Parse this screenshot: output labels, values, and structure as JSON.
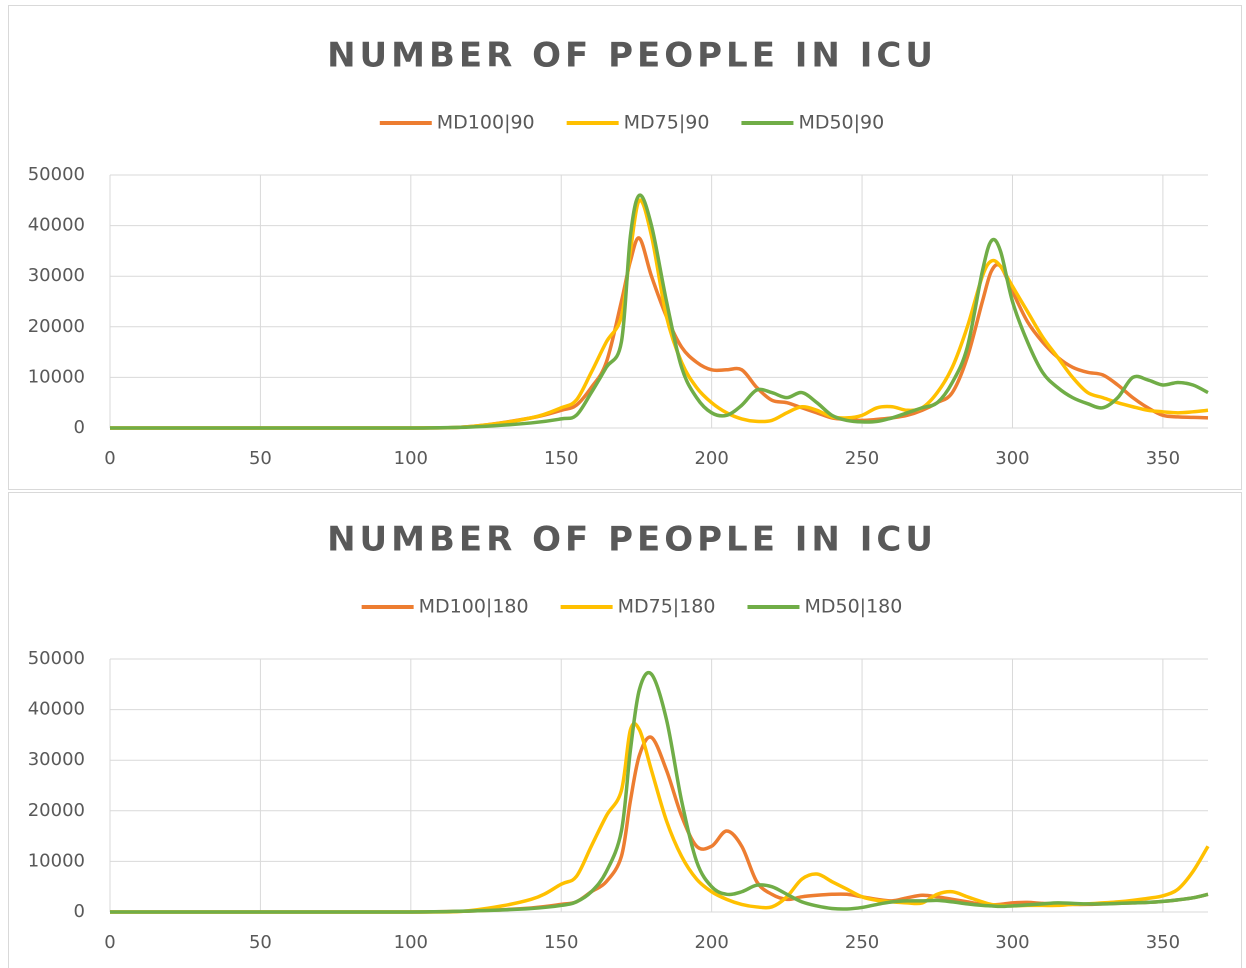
{
  "chart_data": [
    {
      "type": "line",
      "title": "NUMBER OF PEOPLE IN ICU",
      "x": [
        0,
        50,
        100,
        120,
        140,
        150,
        155,
        160,
        165,
        170,
        173,
        176,
        180,
        185,
        190,
        195,
        200,
        205,
        210,
        215,
        220,
        225,
        230,
        235,
        240,
        245,
        250,
        255,
        260,
        265,
        270,
        275,
        280,
        285,
        290,
        293,
        296,
        300,
        305,
        310,
        315,
        320,
        325,
        330,
        335,
        340,
        345,
        350,
        355,
        360,
        365
      ],
      "series": [
        {
          "name": "MD100|90",
          "color": "#ed7d31",
          "values": [
            0,
            0,
            0,
            300,
            2000,
            3500,
            4500,
            8000,
            13000,
            25000,
            33000,
            37500,
            30000,
            22000,
            16000,
            13000,
            11500,
            11500,
            11500,
            8000,
            5500,
            5000,
            4000,
            3000,
            2000,
            1700,
            1500,
            1700,
            2000,
            2500,
            3500,
            5000,
            7000,
            14000,
            25000,
            31000,
            32000,
            27000,
            21000,
            17000,
            14000,
            12000,
            11000,
            10500,
            8500,
            6000,
            4000,
            2500,
            2200,
            2100,
            2000
          ]
        },
        {
          "name": "MD75|90",
          "color": "#ffc000",
          "values": [
            0,
            0,
            0,
            300,
            2000,
            4000,
            5500,
            11000,
            17000,
            22000,
            35000,
            45000,
            38000,
            22000,
            13000,
            8000,
            5000,
            3000,
            1800,
            1300,
            1500,
            3000,
            4200,
            3500,
            2200,
            2000,
            2500,
            4000,
            4200,
            3500,
            4000,
            7000,
            12000,
            20000,
            30000,
            33000,
            32000,
            28000,
            23000,
            18000,
            14000,
            10000,
            7000,
            6000,
            5000,
            4200,
            3500,
            3200,
            3000,
            3200,
            3500
          ]
        },
        {
          "name": "MD50|90",
          "color": "#70ad47",
          "values": [
            0,
            0,
            0,
            200,
            1000,
            1800,
            2500,
            7000,
            12000,
            17000,
            38000,
            46000,
            40000,
            25000,
            12000,
            6000,
            3000,
            2500,
            4500,
            7500,
            7000,
            6000,
            7000,
            5000,
            2500,
            1500,
            1200,
            1300,
            2000,
            3000,
            4000,
            5000,
            9000,
            16000,
            31000,
            37000,
            35000,
            25000,
            17000,
            11000,
            8000,
            6000,
            4800,
            4000,
            6000,
            10000,
            9500,
            8500,
            9000,
            8500,
            7000
          ]
        }
      ],
      "xlim": [
        0,
        365
      ],
      "xticks": [
        0,
        50,
        100,
        150,
        200,
        250,
        300,
        350
      ],
      "ylim": [
        0,
        50000
      ],
      "yticks": [
        0,
        10000,
        20000,
        30000,
        40000,
        50000
      ],
      "grid": true,
      "legend": "top"
    },
    {
      "type": "line",
      "title": "NUMBER OF PEOPLE IN ICU",
      "x": [
        0,
        50,
        100,
        120,
        140,
        150,
        155,
        160,
        165,
        170,
        173,
        176,
        180,
        185,
        190,
        195,
        200,
        205,
        210,
        215,
        220,
        225,
        230,
        235,
        240,
        245,
        250,
        255,
        260,
        265,
        270,
        275,
        280,
        285,
        290,
        293,
        296,
        300,
        305,
        310,
        315,
        320,
        325,
        330,
        335,
        340,
        345,
        350,
        355,
        360,
        365
      ],
      "series": [
        {
          "name": "MD100|180",
          "color": "#ed7d31",
          "values": [
            0,
            0,
            0,
            200,
            800,
            1500,
            2000,
            4000,
            6000,
            11000,
            22000,
            31000,
            34500,
            28000,
            19000,
            13000,
            13000,
            16000,
            13000,
            6000,
            3500,
            2500,
            3000,
            3300,
            3500,
            3500,
            3000,
            2500,
            2200,
            2800,
            3300,
            3000,
            2500,
            2000,
            1500,
            1400,
            1500,
            1800,
            1900,
            1700,
            1600,
            1500,
            1500,
            1600,
            1700,
            1800,
            1900,
            2100,
            2400,
            2800,
            3500
          ]
        },
        {
          "name": "MD75|180",
          "color": "#ffc000",
          "values": [
            0,
            0,
            0,
            300,
            2500,
            5500,
            7000,
            13000,
            19000,
            24000,
            36000,
            36000,
            28000,
            18000,
            11000,
            6500,
            4000,
            2500,
            1500,
            1000,
            1000,
            3000,
            6500,
            7500,
            6000,
            4500,
            3000,
            2300,
            2000,
            1800,
            1800,
            3500,
            4000,
            3000,
            2000,
            1500,
            1300,
            1200,
            1300,
            1300,
            1300,
            1500,
            1600,
            1800,
            2000,
            2300,
            2700,
            3200,
            4500,
            8000,
            13000
          ]
        },
        {
          "name": "MD50|180",
          "color": "#70ad47",
          "values": [
            0,
            0,
            0,
            200,
            700,
            1300,
            2000,
            4000,
            8000,
            16000,
            32000,
            44000,
            47000,
            38000,
            22000,
            10000,
            5000,
            3500,
            4000,
            5300,
            5000,
            3500,
            2000,
            1200,
            700,
            600,
            900,
            1500,
            2000,
            2200,
            2200,
            2300,
            2000,
            1600,
            1300,
            1200,
            1100,
            1200,
            1400,
            1600,
            1800,
            1700,
            1600,
            1600,
            1700,
            1800,
            1900,
            2100,
            2400,
            2800,
            3500
          ]
        }
      ],
      "xlim": [
        0,
        365
      ],
      "xticks": [
        0,
        50,
        100,
        150,
        200,
        250,
        300,
        350
      ],
      "ylim": [
        0,
        50000
      ],
      "yticks": [
        0,
        10000,
        20000,
        30000,
        40000,
        50000
      ],
      "grid": true,
      "legend": "top"
    }
  ]
}
